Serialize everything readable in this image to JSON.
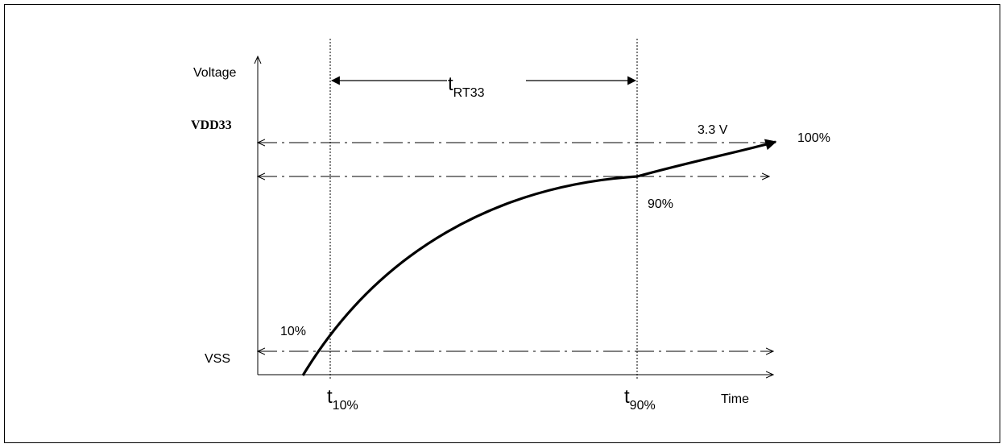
{
  "diagram": {
    "y_axis_label": "Voltage",
    "x_axis_label": "Time",
    "vdd_label": "VDD33",
    "vss_label": "VSS",
    "voltage_label": "3.3 V",
    "pct_100": "100%",
    "pct_90": "90%",
    "pct_10": "10%",
    "t_rise": {
      "main": "t",
      "sub": "RT33"
    },
    "t_10": {
      "main": "t",
      "sub": "10%"
    },
    "t_90": {
      "main": "t",
      "sub": "90%"
    }
  }
}
